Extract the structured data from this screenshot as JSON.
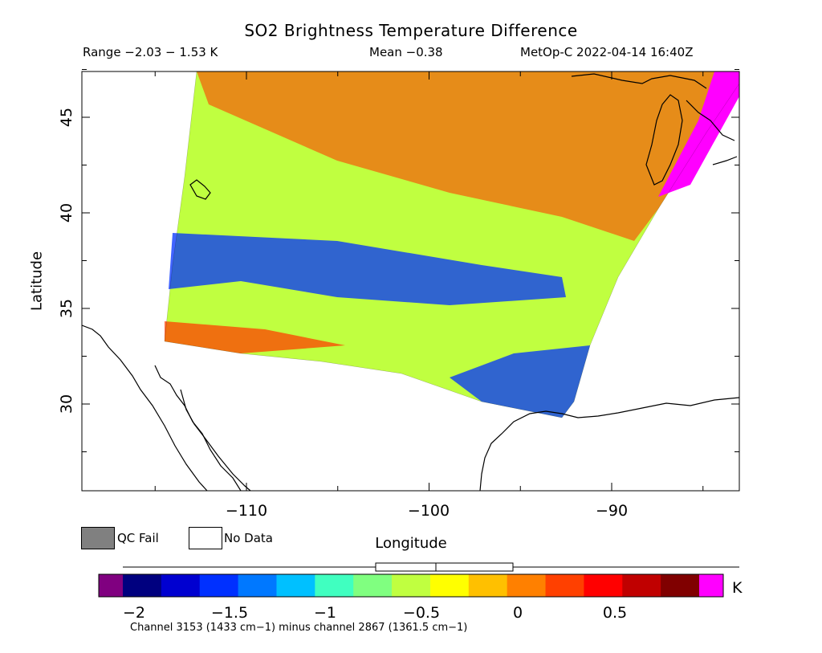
{
  "title": "SO2 Brightness Temperature Difference",
  "stats": {
    "range": "Range −2.03 − 1.53 K",
    "mean": "Mean −0.38",
    "satellite": "MetOp-C 2022-04-14 16:40Z"
  },
  "axes": {
    "x_label": "Longitude",
    "y_label": "Latitude",
    "x_ticks": [
      "−110",
      "−100",
      "−90"
    ],
    "y_ticks": [
      "45",
      "40",
      "35",
      "30"
    ]
  },
  "legend": {
    "qc_fail": "QC Fail",
    "no_data": "No Data",
    "qc_fail_color": "#808080",
    "no_data_color": "#ffffff"
  },
  "colorbar": {
    "unit": "K",
    "tick_labels": [
      "−2",
      "−1.5",
      "−1",
      "−0.5",
      "0",
      "0.5"
    ],
    "below_color": "#800080",
    "above_color": "#ff00ff",
    "colors": [
      "#00007f",
      "#0000d0",
      "#0030ff",
      "#0078ff",
      "#00c0ff",
      "#40ffc0",
      "#80ff80",
      "#c0ff40",
      "#ffff00",
      "#ffc000",
      "#ff8000",
      "#ff4000",
      "#ff0000",
      "#c00000",
      "#800000"
    ]
  },
  "footer": "Channel 3153 (1433 cm−1) minus channel 2867 (1361.5 cm−1)",
  "map": {
    "lon_range": [
      -119,
      -83
    ],
    "lat_range": [
      25.5,
      47.5
    ],
    "swath_colors": {
      "negative_band": "#0030ff",
      "background": "#c0ff40",
      "positive_band": "#ff4000",
      "masked": "#ff00ff"
    }
  }
}
